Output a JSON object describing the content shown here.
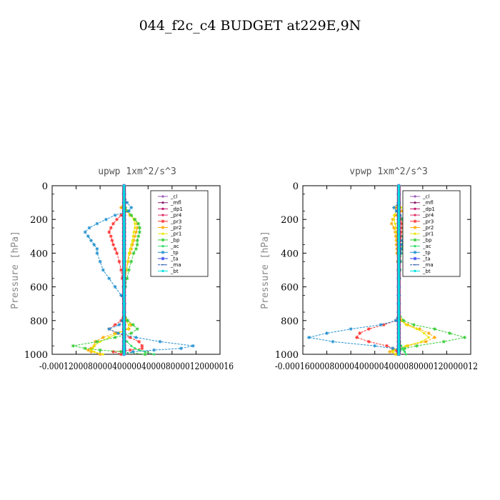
{
  "title": "044_f2c_c4  BUDGET at229E,9N",
  "legend": {
    "entries": [
      {
        "label": "_cl",
        "color": "#9b59b6",
        "marker": "circle"
      },
      {
        "label": "_mfl",
        "color": "#8e1f6e",
        "marker": "circle"
      },
      {
        "label": "_dp1",
        "color": "#c0146b",
        "marker": "circle"
      },
      {
        "label": "_pr4",
        "color": "#e0306a",
        "marker": "circle"
      },
      {
        "label": "_pr3",
        "color": "#ff3030",
        "marker": "star"
      },
      {
        "label": "_pr2",
        "color": "#ffaa00",
        "marker": "star"
      },
      {
        "label": "_pr1",
        "color": "#e8e800",
        "marker": "circle"
      },
      {
        "label": "_bp",
        "color": "#33cc33",
        "marker": "star"
      },
      {
        "label": "_ac",
        "color": "#33dd66",
        "marker": "circle"
      },
      {
        "label": "_tp",
        "color": "#1f8fcf",
        "marker": "star"
      },
      {
        "label": "_ta",
        "color": "#3344ee",
        "marker": "star"
      },
      {
        "label": "_ma",
        "color": "#2255aa",
        "marker": "dash"
      },
      {
        "label": "_bt",
        "color": "#00e0e0",
        "marker": "circle"
      }
    ]
  },
  "chart_data": [
    {
      "type": "line",
      "title": "upwp    1xm^2/s^3",
      "xlabel": "",
      "ylabel": "Pressure [hPa]",
      "xlim": [
        -0.00012,
        0.00016
      ],
      "ylim": [
        1000,
        0
      ],
      "xtick_text": "-0.00012000800004000004000080000120000016",
      "yticks": [
        "0",
        "200",
        "400",
        "600",
        "800",
        "1000"
      ],
      "y": [
        0,
        50,
        100,
        130,
        150,
        175,
        200,
        225,
        250,
        275,
        300,
        325,
        350,
        375,
        400,
        450,
        500,
        550,
        600,
        650,
        700,
        750,
        800,
        825,
        850,
        875,
        900,
        925,
        950,
        965,
        975,
        985,
        1000
      ],
      "series": [
        {
          "name": "_cl",
          "values": [
            0,
            0,
            0,
            0,
            0,
            0,
            0,
            0,
            0,
            0,
            0,
            0,
            0,
            0,
            0,
            0,
            0,
            0,
            0,
            0,
            0,
            0,
            0,
            0,
            0,
            0,
            0,
            0,
            0,
            0,
            0,
            0,
            0
          ]
        },
        {
          "name": "_mfl",
          "values": [
            0,
            0,
            0,
            0,
            0,
            0,
            0,
            0,
            0,
            0,
            0,
            0,
            0,
            0,
            0,
            0,
            0,
            0,
            0,
            0,
            0,
            0,
            0,
            0,
            0,
            0,
            0,
            0,
            0,
            0,
            0,
            0,
            0
          ]
        },
        {
          "name": "_dp1",
          "values": [
            0,
            0,
            0,
            0,
            0,
            0,
            0,
            0,
            0,
            0,
            0,
            0,
            0,
            0,
            0,
            0,
            0,
            0,
            0,
            0,
            0,
            0,
            0,
            0,
            0,
            0,
            0,
            0,
            0,
            0,
            0,
            0,
            0
          ]
        },
        {
          "name": "_pr4",
          "values": [
            0,
            0,
            0,
            0,
            0,
            0,
            0,
            0,
            0,
            0,
            0,
            0,
            0,
            0,
            0,
            0,
            0,
            0,
            0,
            0,
            0,
            0,
            0,
            0,
            0,
            0,
            0,
            0,
            0,
            0,
            0,
            0,
            0
          ]
        },
        {
          "name": "_pr3",
          "values": [
            0,
            0,
            0,
            0,
            0,
            -5e-06,
            -1.2e-05,
            -1.8e-05,
            -2.2e-05,
            -2.5e-05,
            -2.2e-05,
            -2e-05,
            -1.8e-05,
            -1.5e-05,
            -1.2e-05,
            -8e-06,
            -5e-06,
            -3e-06,
            -1e-06,
            0,
            0,
            0,
            -5e-06,
            -1.5e-05,
            -2.5e-05,
            -1.2e-05,
            1e-05,
            2.5e-05,
            3e-05,
            3e-05,
            1e-05,
            -1.8e-05,
            -5e-06
          ]
        },
        {
          "name": "_pr2",
          "values": [
            0,
            0,
            0,
            -5e-06,
            3e-06,
            1e-05,
            1.8e-05,
            2.2e-05,
            2.2e-05,
            2e-05,
            1.8e-05,
            1.6e-05,
            1.4e-05,
            1.2e-05,
            1e-05,
            7e-06,
            4e-06,
            2e-06,
            1e-06,
            0,
            0,
            0,
            5e-06,
            1.2e-05,
            8e-06,
            -1.5e-05,
            -3.5e-05,
            -4.8e-05,
            -5e-05,
            -5.5e-05,
            -6e-05,
            -5.5e-05,
            -4e-05
          ]
        },
        {
          "name": "_pr1",
          "values": [
            0,
            0,
            0,
            0,
            4e-06,
            1.2e-05,
            1.6e-05,
            1.8e-05,
            1.8e-05,
            1.6e-05,
            1.5e-05,
            1.4e-05,
            1.2e-05,
            1e-05,
            8e-06,
            6e-06,
            4e-06,
            2e-06,
            1e-06,
            0,
            0,
            0,
            3e-06,
            8e-06,
            6e-06,
            -1e-05,
            -2.5e-05,
            -4e-05,
            -5e-05,
            -5.2e-05,
            -5.5e-05,
            -5e-05,
            -3.5e-05
          ]
        },
        {
          "name": "_bp",
          "values": [
            0,
            0,
            0,
            2e-06,
            6e-06,
            1.2e-05,
            1.8e-05,
            2.4e-05,
            2.6e-05,
            2.6e-05,
            2.4e-05,
            2.2e-05,
            2.2e-05,
            2e-05,
            1.6e-05,
            1.2e-05,
            8e-06,
            5e-06,
            2e-06,
            0,
            0,
            0,
            6e-06,
            1.5e-05,
            2.2e-05,
            1.2e-05,
            -1.5e-05,
            -4.5e-05,
            -8.5e-05,
            -6.5e-05,
            -4e-05,
            -5e-06,
            3.5e-05
          ]
        },
        {
          "name": "_ac",
          "values": [
            0,
            0,
            0,
            0,
            0,
            0,
            0,
            0,
            0,
            0,
            0,
            0,
            0,
            0,
            0,
            0,
            0,
            0,
            0,
            0,
            0,
            0,
            0,
            0,
            0,
            0,
            0,
            5e-06,
            1.2e-05,
            1.8e-05,
            2.5e-05,
            3.5e-05,
            5e-05
          ]
        },
        {
          "name": "_tp",
          "values": [
            0,
            0,
            5e-06,
            1.2e-05,
            8e-06,
            -1.5e-05,
            -3e-05,
            -4.5e-05,
            -5.8e-05,
            -6.5e-05,
            -6e-05,
            -5.5e-05,
            -5e-05,
            -4.5e-05,
            -4.5e-05,
            -4e-05,
            -3.5e-05,
            -2.5e-05,
            -1.5e-05,
            -5e-06,
            0,
            0,
            -3e-06,
            -8e-06,
            -2.5e-05,
            -1e-05,
            2e-05,
            6e-05,
            0.000115,
            9.5e-05,
            5e-05,
            1.5e-05,
            0
          ]
        },
        {
          "name": "_ta",
          "values": [
            0,
            0,
            0,
            0,
            0,
            0,
            0,
            0,
            0,
            0,
            0,
            0,
            0,
            0,
            0,
            0,
            0,
            0,
            0,
            0,
            0,
            0,
            0,
            0,
            0,
            0,
            0,
            0,
            0,
            0,
            0,
            0,
            0
          ]
        },
        {
          "name": "_ma",
          "values": [
            0,
            0,
            0,
            0,
            0,
            0,
            0,
            0,
            0,
            0,
            0,
            0,
            0,
            0,
            0,
            0,
            0,
            0,
            0,
            0,
            0,
            0,
            0,
            0,
            0,
            0,
            0,
            0,
            0,
            0,
            0,
            0,
            0
          ]
        },
        {
          "name": "_bt",
          "values": [
            0,
            0,
            0,
            0,
            0,
            0,
            0,
            0,
            0,
            0,
            0,
            0,
            0,
            0,
            0,
            0,
            0,
            0,
            0,
            0,
            0,
            0,
            0,
            0,
            0,
            0,
            0,
            0,
            0,
            0,
            0,
            0,
            0
          ]
        }
      ]
    },
    {
      "type": "line",
      "title": "vpwp    1xm^2/s^3",
      "xlabel": "",
      "ylabel": "Pressure [hPa]",
      "xlim": [
        -0.00016,
        0.00012
      ],
      "ylim": [
        1000,
        0
      ],
      "xtick_text": "-0.000160000800004000004000080000120000012",
      "yticks": [
        "0",
        "200",
        "400",
        "600",
        "800",
        "1000"
      ],
      "y": [
        0,
        50,
        100,
        130,
        150,
        175,
        200,
        225,
        250,
        275,
        300,
        325,
        350,
        375,
        400,
        450,
        500,
        550,
        600,
        650,
        700,
        750,
        800,
        825,
        850,
        875,
        900,
        925,
        950,
        965,
        975,
        985,
        1000
      ],
      "series": [
        {
          "name": "_cl",
          "values": [
            0,
            0,
            0,
            0,
            0,
            0,
            0,
            0,
            0,
            0,
            0,
            0,
            0,
            0,
            0,
            0,
            0,
            0,
            0,
            0,
            0,
            0,
            0,
            0,
            0,
            0,
            0,
            0,
            0,
            0,
            0,
            0,
            0
          ]
        },
        {
          "name": "_mfl",
          "values": [
            0,
            0,
            0,
            0,
            0,
            0,
            0,
            0,
            0,
            0,
            0,
            0,
            0,
            0,
            0,
            0,
            0,
            0,
            0,
            0,
            0,
            0,
            0,
            0,
            0,
            0,
            0,
            0,
            0,
            0,
            0,
            0,
            0
          ]
        },
        {
          "name": "_dp1",
          "values": [
            0,
            0,
            0,
            0,
            0,
            0,
            0,
            0,
            0,
            0,
            0,
            0,
            0,
            0,
            0,
            0,
            0,
            0,
            0,
            0,
            0,
            0,
            0,
            0,
            0,
            0,
            0,
            0,
            0,
            0,
            0,
            0,
            0
          ]
        },
        {
          "name": "_pr4",
          "values": [
            0,
            0,
            0,
            0,
            0,
            0,
            0,
            0,
            0,
            0,
            0,
            0,
            0,
            0,
            0,
            0,
            0,
            0,
            0,
            0,
            0,
            0,
            0,
            0,
            0,
            0,
            0,
            0,
            0,
            0,
            0,
            0,
            0
          ]
        },
        {
          "name": "_pr3",
          "values": [
            0,
            0,
            0,
            0,
            0,
            2e-06,
            4e-06,
            5e-06,
            5e-06,
            4e-06,
            4e-06,
            3e-06,
            3e-06,
            2e-06,
            2e-06,
            1e-06,
            0,
            0,
            0,
            0,
            0,
            0,
            -5e-06,
            -2.5e-05,
            -5e-05,
            -6.5e-05,
            -7e-05,
            -5e-05,
            -2e-05,
            -1e-05,
            -5e-06,
            -2e-06,
            0
          ]
        },
        {
          "name": "_pr2",
          "values": [
            0,
            0,
            0,
            -5e-06,
            5e-06,
            -5e-06,
            -1e-05,
            -1.2e-05,
            -8e-06,
            -6e-06,
            -5e-06,
            -4e-06,
            -4e-06,
            -3e-06,
            -3e-06,
            -2e-06,
            -1e-06,
            0,
            0,
            0,
            0,
            0,
            5e-06,
            1.5e-05,
            3.5e-05,
            5e-05,
            6e-05,
            4.5e-05,
            1.5e-05,
            0,
            -1e-05,
            -1.5e-05,
            -5e-06
          ]
        },
        {
          "name": "_pr1",
          "values": [
            0,
            0,
            0,
            4e-06,
            -4e-06,
            -8e-06,
            -8e-06,
            -6e-06,
            -5e-06,
            -4e-06,
            -3e-06,
            -3e-06,
            -2e-06,
            -2e-06,
            -2e-06,
            -1e-06,
            -1e-06,
            0,
            0,
            0,
            0,
            0,
            4e-06,
            1.2e-05,
            3e-05,
            4.2e-05,
            5e-05,
            3.8e-05,
            1.2e-05,
            2e-06,
            -8e-06,
            -1e-05,
            -4e-06
          ]
        },
        {
          "name": "_bp",
          "values": [
            0,
            0,
            0,
            0,
            0,
            2e-06,
            6e-06,
            8e-06,
            8e-06,
            8e-06,
            7e-06,
            6e-06,
            6e-06,
            5e-06,
            4e-06,
            3e-06,
            2e-06,
            1e-06,
            0,
            0,
            0,
            0,
            8e-06,
            2.5e-05,
            6e-05,
            8.5e-05,
            0.00011,
            7.5e-05,
            3e-05,
            1e-05,
            2e-06,
            0,
            0
          ]
        },
        {
          "name": "_ac",
          "values": [
            0,
            0,
            0,
            0,
            0,
            0,
            0,
            0,
            0,
            0,
            0,
            0,
            0,
            0,
            0,
            0,
            0,
            0,
            0,
            0,
            0,
            0,
            0,
            0,
            0,
            0,
            0,
            2e-06,
            4e-06,
            6e-06,
            8e-06,
            1e-05,
            1.2e-05
          ]
        },
        {
          "name": "_tp",
          "values": [
            0,
            0,
            0,
            -8e-06,
            -4e-06,
            2e-06,
            8e-06,
            1.2e-05,
            1.2e-05,
            1e-05,
            8e-06,
            6e-06,
            5e-06,
            4e-06,
            3e-06,
            2e-06,
            1e-06,
            0,
            0,
            0,
            0,
            0,
            -5e-06,
            -3e-05,
            -8e-05,
            -0.00012,
            -0.00015,
            -0.00011,
            -4e-05,
            -1e-05,
            0,
            0,
            0
          ]
        },
        {
          "name": "_ta",
          "values": [
            0,
            0,
            0,
            0,
            0,
            0,
            0,
            0,
            0,
            0,
            0,
            0,
            0,
            0,
            0,
            0,
            0,
            0,
            0,
            0,
            0,
            0,
            0,
            0,
            0,
            0,
            0,
            0,
            0,
            0,
            0,
            0,
            0
          ]
        },
        {
          "name": "_ma",
          "values": [
            0,
            0,
            0,
            0,
            0,
            0,
            0,
            0,
            0,
            0,
            0,
            0,
            0,
            0,
            0,
            0,
            0,
            0,
            0,
            0,
            0,
            0,
            0,
            0,
            0,
            0,
            0,
            0,
            0,
            0,
            0,
            0,
            0
          ]
        },
        {
          "name": "_bt",
          "values": [
            0,
            0,
            0,
            0,
            0,
            0,
            0,
            0,
            0,
            0,
            0,
            0,
            0,
            0,
            0,
            0,
            0,
            0,
            0,
            0,
            0,
            0,
            0,
            0,
            0,
            0,
            0,
            0,
            0,
            0,
            0,
            0,
            0
          ]
        }
      ]
    }
  ]
}
